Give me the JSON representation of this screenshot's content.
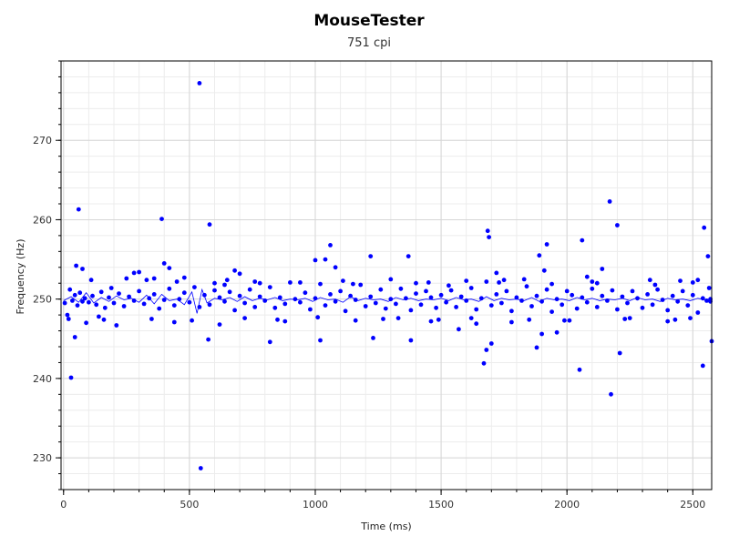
{
  "chart_data": {
    "type": "scatter",
    "title": "MouseTester",
    "subtitle": "751 cpi",
    "xlabel": "Time (ms)",
    "ylabel": "Frequency (Hz)",
    "xlim": [
      -10,
      2575
    ],
    "ylim": [
      226,
      280
    ],
    "xticks": [
      0,
      500,
      1000,
      1500,
      2000,
      2500
    ],
    "yticks": [
      230,
      240,
      250,
      260,
      270
    ],
    "x_minor_step": 100,
    "y_minor_step": 2,
    "grid": true,
    "legend": "none",
    "colors": {
      "points": "#0000ff",
      "line": "#0000ff",
      "grid_major": "#d6d6d6",
      "grid_minor": "#ececec",
      "axis": "#000000"
    },
    "series": [
      {
        "kind": "line",
        "x": [
          0,
          30,
          60,
          90,
          120,
          150,
          180,
          210,
          240,
          270,
          300,
          330,
          360,
          390,
          420,
          450,
          480,
          510,
          530,
          550,
          570,
          600,
          630,
          660,
          690,
          720,
          750,
          780,
          810,
          840,
          870,
          900,
          930,
          960,
          990,
          1020,
          1050,
          1080,
          1110,
          1140,
          1170,
          1200,
          1230,
          1260,
          1290,
          1320,
          1350,
          1380,
          1410,
          1440,
          1470,
          1500,
          1530,
          1560,
          1590,
          1620,
          1650,
          1680,
          1710,
          1740,
          1770,
          1800,
          1830,
          1860,
          1890,
          1920,
          1950,
          1980,
          2010,
          2040,
          2070,
          2100,
          2130,
          2160,
          2190,
          2220,
          2250,
          2280,
          2310,
          2340,
          2370,
          2400,
          2430,
          2460,
          2490,
          2520,
          2550
        ],
        "y": [
          249.8,
          250.3,
          249.6,
          250.8,
          249.5,
          250.2,
          249.7,
          250.4,
          249.9,
          250.1,
          249.6,
          250.5,
          249.4,
          250.6,
          249.8,
          250.0,
          249.3,
          250.9,
          248.2,
          251.2,
          249.5,
          250.1,
          249.9,
          250.2,
          249.7,
          250.3,
          249.8,
          250.1,
          249.9,
          250.2,
          249.8,
          250.0,
          249.9,
          250.1,
          249.7,
          250.2,
          249.9,
          250.0,
          249.6,
          250.3,
          249.8,
          250.1,
          249.9,
          250.0,
          249.7,
          250.2,
          249.9,
          250.1,
          249.8,
          250.0,
          249.9,
          250.1,
          249.8,
          250.2,
          249.9,
          250.0,
          249.7,
          250.3,
          249.8,
          250.1,
          249.9,
          250.0,
          249.8,
          250.2,
          249.7,
          250.1,
          249.9,
          250.0,
          249.8,
          250.2,
          249.9,
          250.1,
          249.8,
          250.0,
          249.9,
          250.1,
          249.8,
          250.2,
          249.9,
          250.0,
          249.7,
          250.1,
          249.9,
          250.0,
          249.8,
          250.1,
          249.9
        ]
      },
      {
        "kind": "points",
        "x": [
          5,
          15,
          25,
          35,
          45,
          55,
          65,
          75,
          85,
          100,
          115,
          130,
          150,
          165,
          180,
          200,
          220,
          240,
          260,
          280,
          300,
          320,
          340,
          360,
          380,
          400,
          420,
          440,
          460,
          480,
          500,
          520,
          540,
          560,
          580,
          600,
          620,
          640,
          660,
          680,
          700,
          720,
          740,
          760,
          780,
          800,
          820,
          840,
          860,
          880,
          900,
          920,
          940,
          960,
          980,
          1000,
          1020,
          1040,
          1060,
          1080,
          1100,
          1120,
          1140,
          1160,
          1180,
          1200,
          1220,
          1240,
          1260,
          1280,
          1300,
          1320,
          1340,
          1360,
          1380,
          1400,
          1420,
          1440,
          1460,
          1480,
          1500,
          1520,
          1540,
          1560,
          1580,
          1600,
          1620,
          1640,
          1660,
          1680,
          1700,
          1720,
          1740,
          1760,
          1780,
          1800,
          1820,
          1840,
          1860,
          1880,
          1900,
          1920,
          1940,
          1960,
          1980,
          2000,
          2020,
          2040,
          2060,
          2080,
          2100,
          2120,
          2140,
          2160,
          2180,
          2200,
          2220,
          2240,
          2260,
          2280,
          2300,
          2320,
          2340,
          2360,
          2380,
          2400,
          2420,
          2440,
          2460,
          2480,
          2500,
          2520,
          2540,
          2555,
          2565,
          2570,
          50,
          60,
          75,
          210,
          300,
          390,
          400,
          420,
          540,
          545,
          575,
          580,
          600,
          680,
          700,
          820,
          1000,
          1020,
          1040,
          1060,
          1080,
          1220,
          1230,
          1370,
          1380,
          1570,
          1670,
          1680,
          1685,
          1690,
          1700,
          1720,
          1880,
          1890,
          1900,
          1910,
          1920,
          1960,
          2050,
          2060,
          2080,
          2140,
          2170,
          2175,
          2200,
          2210,
          2540,
          2545,
          2560,
          2570,
          2575,
          45,
          30,
          90,
          110,
          160,
          250,
          280,
          330,
          360,
          440,
          480,
          620,
          650,
          760,
          880,
          1110,
          1160,
          1300,
          1330,
          1450,
          1490,
          1600,
          1640,
          1750,
          1780,
          1830,
          1990,
          2100,
          2230,
          2330,
          2400,
          2450,
          2490,
          2520,
          20,
          140,
          190,
          350,
          450,
          510,
          640,
          720,
          780,
          850,
          940,
          1010,
          1150,
          1270,
          1400,
          1460,
          1530,
          1620,
          1730,
          1850,
          1940,
          2010,
          2120,
          2250,
          2350,
          2430,
          2500
        ],
        "y": [
          249.5,
          248.0,
          251.2,
          249.8,
          250.5,
          249.2,
          250.8,
          249.7,
          250.1,
          249.6,
          250.4,
          249.3,
          250.9,
          248.9,
          250.2,
          249.5,
          250.7,
          249.1,
          250.3,
          249.8,
          251.0,
          249.4,
          250.1,
          250.6,
          248.8,
          249.9,
          251.3,
          249.2,
          250.0,
          250.8,
          249.6,
          251.5,
          249.0,
          250.5,
          249.3,
          251.1,
          250.2,
          249.7,
          250.9,
          248.6,
          250.4,
          249.5,
          251.2,
          249.0,
          250.3,
          249.8,
          251.5,
          248.9,
          250.2,
          249.4,
          252.1,
          250.0,
          249.6,
          250.8,
          248.7,
          250.1,
          251.9,
          249.2,
          250.6,
          249.7,
          251.0,
          248.5,
          250.4,
          249.9,
          251.8,
          249.1,
          250.3,
          249.5,
          251.2,
          248.8,
          250.0,
          249.4,
          251.3,
          250.1,
          248.6,
          250.7,
          249.3,
          251.0,
          250.2,
          248.9,
          250.5,
          249.6,
          251.1,
          249.0,
          250.3,
          249.8,
          251.4,
          248.7,
          250.1,
          252.2,
          249.2,
          250.6,
          249.5,
          251.0,
          248.5,
          250.2,
          249.8,
          251.6,
          249.1,
          250.4,
          249.7,
          251.2,
          248.4,
          250.0,
          249.3,
          251.0,
          250.5,
          248.8,
          250.2,
          249.6,
          251.3,
          249.0,
          250.4,
          249.8,
          251.1,
          248.7,
          250.3,
          249.5,
          251.0,
          250.1,
          248.9,
          250.6,
          249.3,
          251.2,
          249.9,
          248.6,
          250.4,
          249.7,
          251.0,
          249.2,
          250.5,
          248.3,
          250.1,
          249.8,
          251.4,
          250.0,
          254.2,
          261.3,
          253.8,
          246.7,
          253.4,
          260.1,
          254.5,
          253.9,
          277.2,
          228.7,
          244.9,
          259.4,
          252.0,
          253.6,
          253.2,
          244.6,
          254.9,
          244.8,
          255.0,
          256.8,
          254.0,
          255.4,
          245.1,
          255.4,
          244.8,
          246.2,
          241.9,
          243.6,
          258.6,
          257.8,
          244.4,
          253.3,
          243.9,
          255.5,
          245.6,
          253.6,
          256.9,
          245.8,
          241.1,
          257.4,
          252.8,
          253.8,
          262.3,
          238.0,
          259.3,
          243.2,
          241.6,
          259.0,
          255.4,
          249.7,
          244.7,
          245.2,
          240.1,
          247.0,
          252.4,
          247.4,
          252.6,
          253.3,
          252.4,
          252.6,
          247.1,
          252.7,
          246.8,
          252.4,
          252.2,
          247.2,
          252.3,
          247.3,
          252.5,
          247.6,
          252.1,
          247.4,
          252.3,
          246.9,
          252.4,
          247.1,
          252.5,
          247.3,
          252.2,
          247.5,
          252.4,
          247.2,
          252.3,
          247.6,
          252.4,
          247.5,
          247.8,
          251.4,
          247.5,
          252.2,
          247.3,
          251.8,
          247.6,
          252.0,
          247.4,
          252.1,
          247.7,
          251.9,
          247.5,
          252.0,
          247.2,
          251.7,
          247.6,
          252.1,
          247.4,
          251.9,
          247.3,
          252.0,
          247.6,
          251.8,
          247.4,
          252.1
        ]
      }
    ]
  }
}
